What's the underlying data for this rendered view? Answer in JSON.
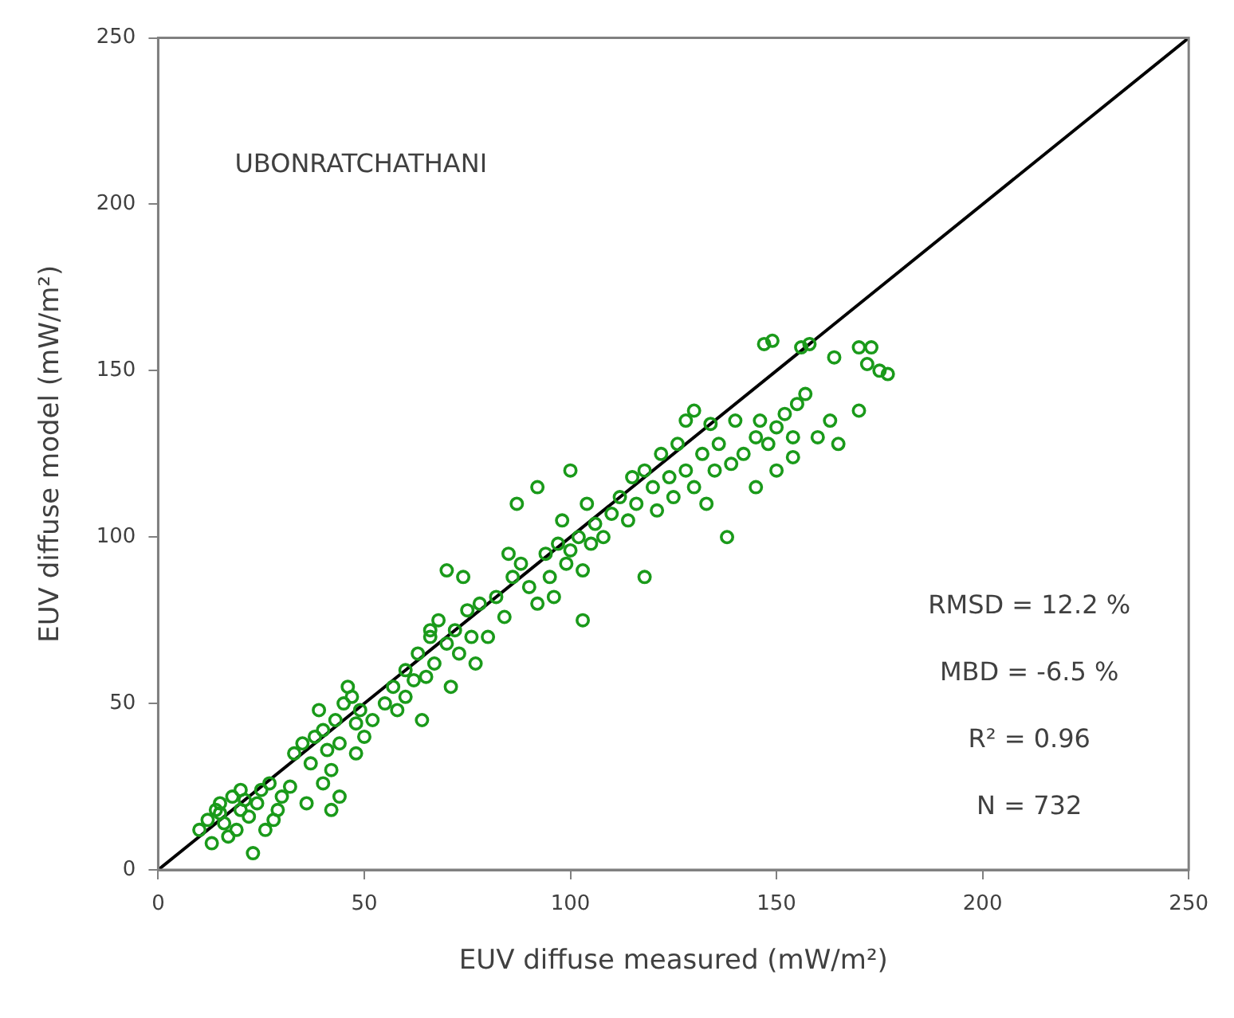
{
  "chart_data": {
    "type": "scatter",
    "xlabel": "EUV diffuse measured (mW/m²)",
    "ylabel": "EUV diffuse model (mW/m²)",
    "xlim": [
      0,
      250
    ],
    "ylim": [
      0,
      250
    ],
    "xticks": [
      0,
      50,
      100,
      150,
      200,
      250
    ],
    "yticks": [
      0,
      50,
      100,
      150,
      200,
      250
    ],
    "grid": false,
    "legend": false,
    "marker": "circle",
    "annotations": [
      "UBONRATCHATHANI",
      "RMSD = 12.2 %",
      "MBD = -6.5 %",
      "R² = 0.96",
      "N = 732"
    ],
    "series": [
      {
        "color": "#1a9a1a",
        "x": [
          10,
          12,
          14,
          15,
          16,
          18,
          20,
          22,
          24,
          25,
          26,
          28,
          20,
          17,
          13,
          23,
          30,
          32,
          29,
          19,
          21,
          27,
          15,
          33,
          35,
          37,
          38,
          40,
          41,
          42,
          43,
          44,
          45,
          46,
          47,
          48,
          49,
          50,
          36,
          42,
          40,
          44,
          48,
          39,
          52,
          55,
          57,
          58,
          60,
          62,
          63,
          65,
          66,
          67,
          68,
          70,
          71,
          72,
          73,
          75,
          76,
          78,
          74,
          70,
          66,
          64,
          60,
          77,
          80,
          82,
          84,
          86,
          88,
          90,
          92,
          94,
          95,
          97,
          98,
          99,
          100,
          102,
          103,
          104,
          105,
          106,
          108,
          110,
          87,
          92,
          85,
          103,
          96,
          100,
          112,
          114,
          115,
          116,
          118,
          120,
          121,
          122,
          124,
          125,
          126,
          128,
          130,
          132,
          133,
          135,
          136,
          138,
          130,
          134,
          128,
          140,
          139,
          118,
          142,
          145,
          146,
          148,
          150,
          152,
          154,
          155,
          157,
          160,
          163,
          165,
          170,
          147,
          149,
          156,
          158,
          164,
          170,
          173,
          172,
          175,
          177,
          145,
          150,
          154
        ],
        "values": [
          12,
          15,
          18,
          20,
          14,
          22,
          18,
          16,
          20,
          24,
          12,
          15,
          24,
          10,
          8,
          5,
          22,
          25,
          18,
          12,
          21,
          26,
          17,
          35,
          38,
          32,
          40,
          42,
          36,
          30,
          45,
          38,
          50,
          55,
          52,
          44,
          48,
          40,
          20,
          18,
          26,
          22,
          35,
          48,
          45,
          50,
          55,
          48,
          60,
          57,
          65,
          58,
          70,
          62,
          75,
          68,
          55,
          72,
          65,
          78,
          70,
          80,
          88,
          90,
          72,
          45,
          52,
          62,
          70,
          82,
          76,
          88,
          92,
          85,
          80,
          95,
          88,
          98,
          105,
          92,
          96,
          100,
          90,
          110,
          98,
          104,
          100,
          107,
          110,
          115,
          95,
          75,
          82,
          120,
          112,
          105,
          118,
          110,
          120,
          115,
          108,
          125,
          118,
          112,
          128,
          120,
          115,
          125,
          110,
          120,
          128,
          100,
          138,
          134,
          135,
          135,
          122,
          88,
          125,
          130,
          135,
          128,
          133,
          137,
          130,
          140,
          143,
          130,
          135,
          128,
          138,
          158,
          159,
          157,
          158,
          154,
          157,
          157,
          152,
          150,
          149,
          115,
          120,
          124
        ]
      },
      {
        "type": "line",
        "color": "#000000",
        "x": [
          0,
          250
        ],
        "values": [
          0,
          250
        ],
        "marker": "none"
      }
    ]
  }
}
